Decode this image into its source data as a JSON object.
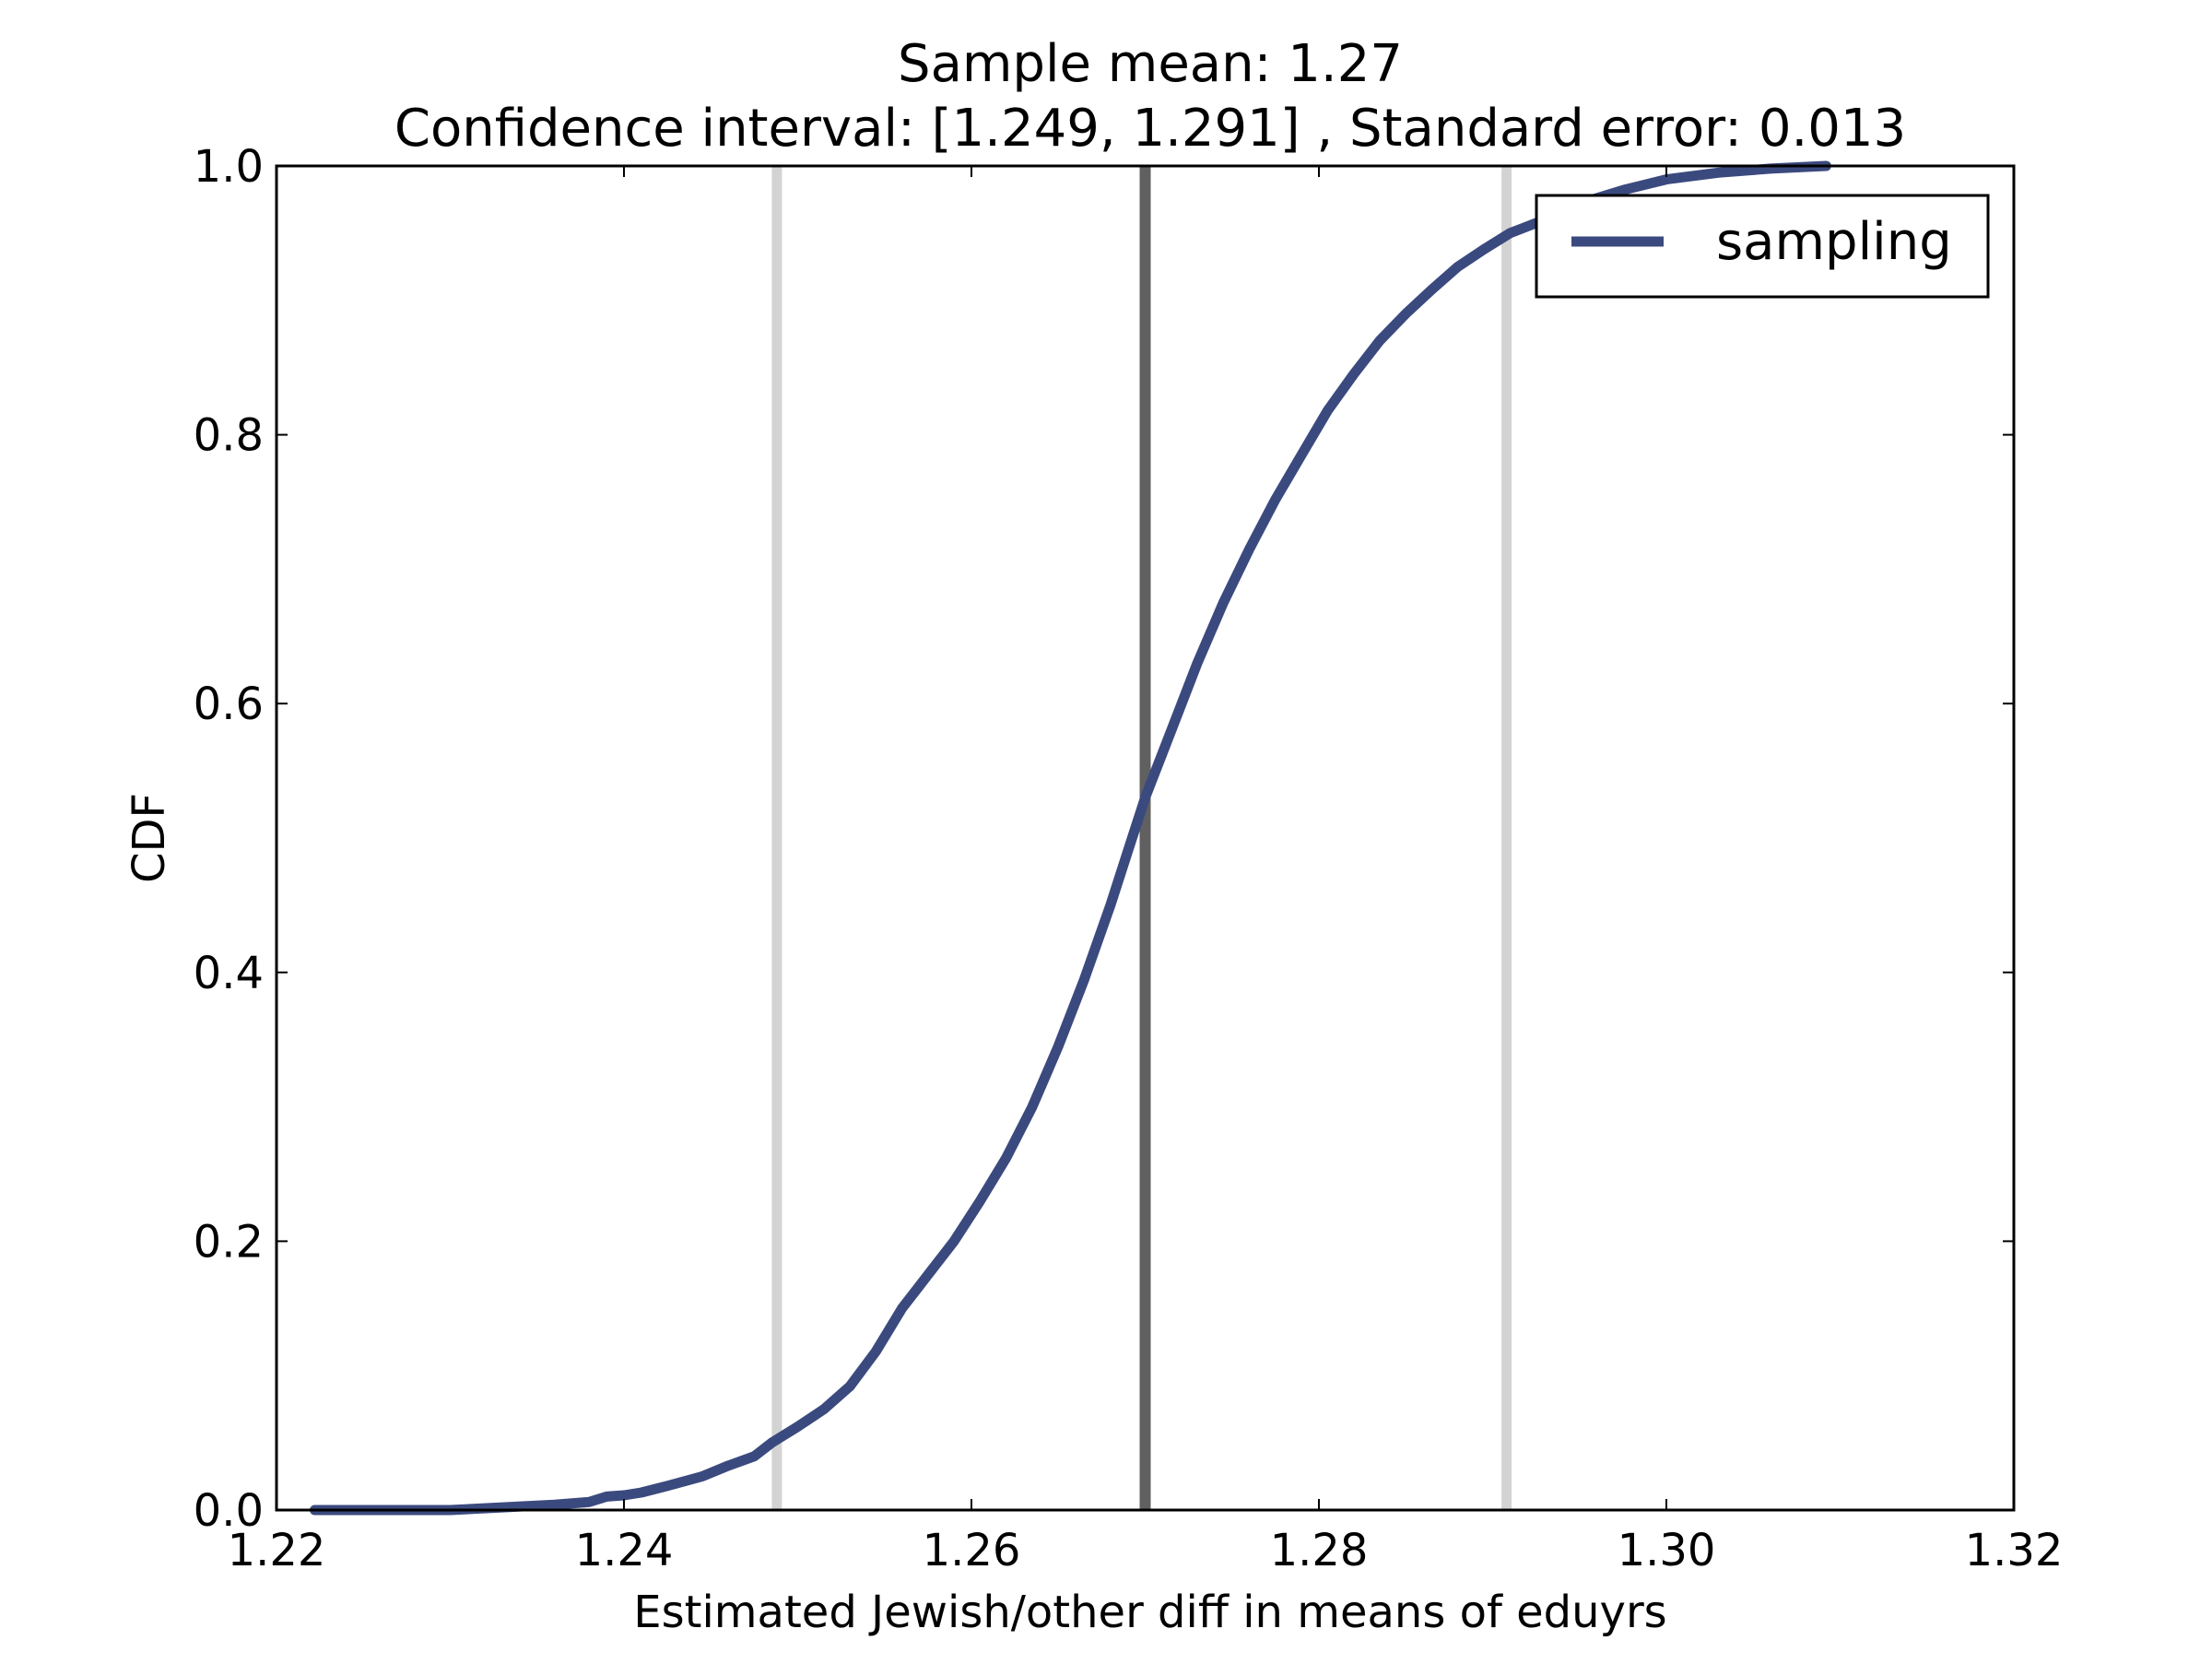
{
  "chart_data": {
    "type": "line",
    "title_line1": "Sample mean: 1.27",
    "title_line2": "Confidence interval: [1.249, 1.291] , Standard error: 0.013",
    "xlabel": "Estimated Jewish/other diff in means of eduyrs",
    "ylabel": "CDF",
    "xlim": [
      1.22,
      1.32
    ],
    "ylim": [
      0.0,
      1.0
    ],
    "xticks": [
      1.22,
      1.24,
      1.26,
      1.28,
      1.3,
      1.32
    ],
    "xtick_labels": [
      "1.22",
      "1.24",
      "1.26",
      "1.28",
      "1.30",
      "1.32"
    ],
    "yticks": [
      0.0,
      0.2,
      0.4,
      0.6,
      0.8,
      1.0
    ],
    "ytick_labels": [
      "0.0",
      "0.2",
      "0.4",
      "0.6",
      "0.8",
      "1.0"
    ],
    "grid": false,
    "legend_position": "top-right",
    "series": [
      {
        "name": "sampling",
        "color": "#3b4a7e",
        "x": [
          1.2222,
          1.226,
          1.23,
          1.233,
          1.236,
          1.238,
          1.239,
          1.24,
          1.241,
          1.2425,
          1.2445,
          1.246,
          1.2475,
          1.2485,
          1.25,
          1.2515,
          1.253,
          1.2545,
          1.256,
          1.2575,
          1.259,
          1.2605,
          1.262,
          1.2635,
          1.265,
          1.2665,
          1.268,
          1.269,
          1.27,
          1.2715,
          1.273,
          1.2745,
          1.276,
          1.2775,
          1.279,
          1.2805,
          1.282,
          1.2835,
          1.285,
          1.2865,
          1.288,
          1.2895,
          1.291,
          1.293,
          1.295,
          1.2975,
          1.3,
          1.303,
          1.306,
          1.3092
        ],
        "y": [
          0.0,
          0.0,
          0.0,
          0.002,
          0.004,
          0.006,
          0.01,
          0.011,
          0.013,
          0.018,
          0.025,
          0.033,
          0.04,
          0.05,
          0.062,
          0.075,
          0.092,
          0.118,
          0.15,
          0.175,
          0.2,
          0.23,
          0.262,
          0.3,
          0.345,
          0.395,
          0.45,
          0.49,
          0.53,
          0.58,
          0.63,
          0.675,
          0.715,
          0.752,
          0.785,
          0.818,
          0.845,
          0.87,
          0.89,
          0.908,
          0.925,
          0.938,
          0.95,
          0.96,
          0.972,
          0.982,
          0.99,
          0.995,
          0.998,
          1.0
        ]
      }
    ],
    "vlines": [
      {
        "name": "ci-lower",
        "x": 1.2488,
        "color": "#d3d3d3"
      },
      {
        "name": "mean",
        "x": 1.27,
        "color": "#606060"
      },
      {
        "name": "ci-upper",
        "x": 1.2908,
        "color": "#d3d3d3"
      }
    ]
  }
}
